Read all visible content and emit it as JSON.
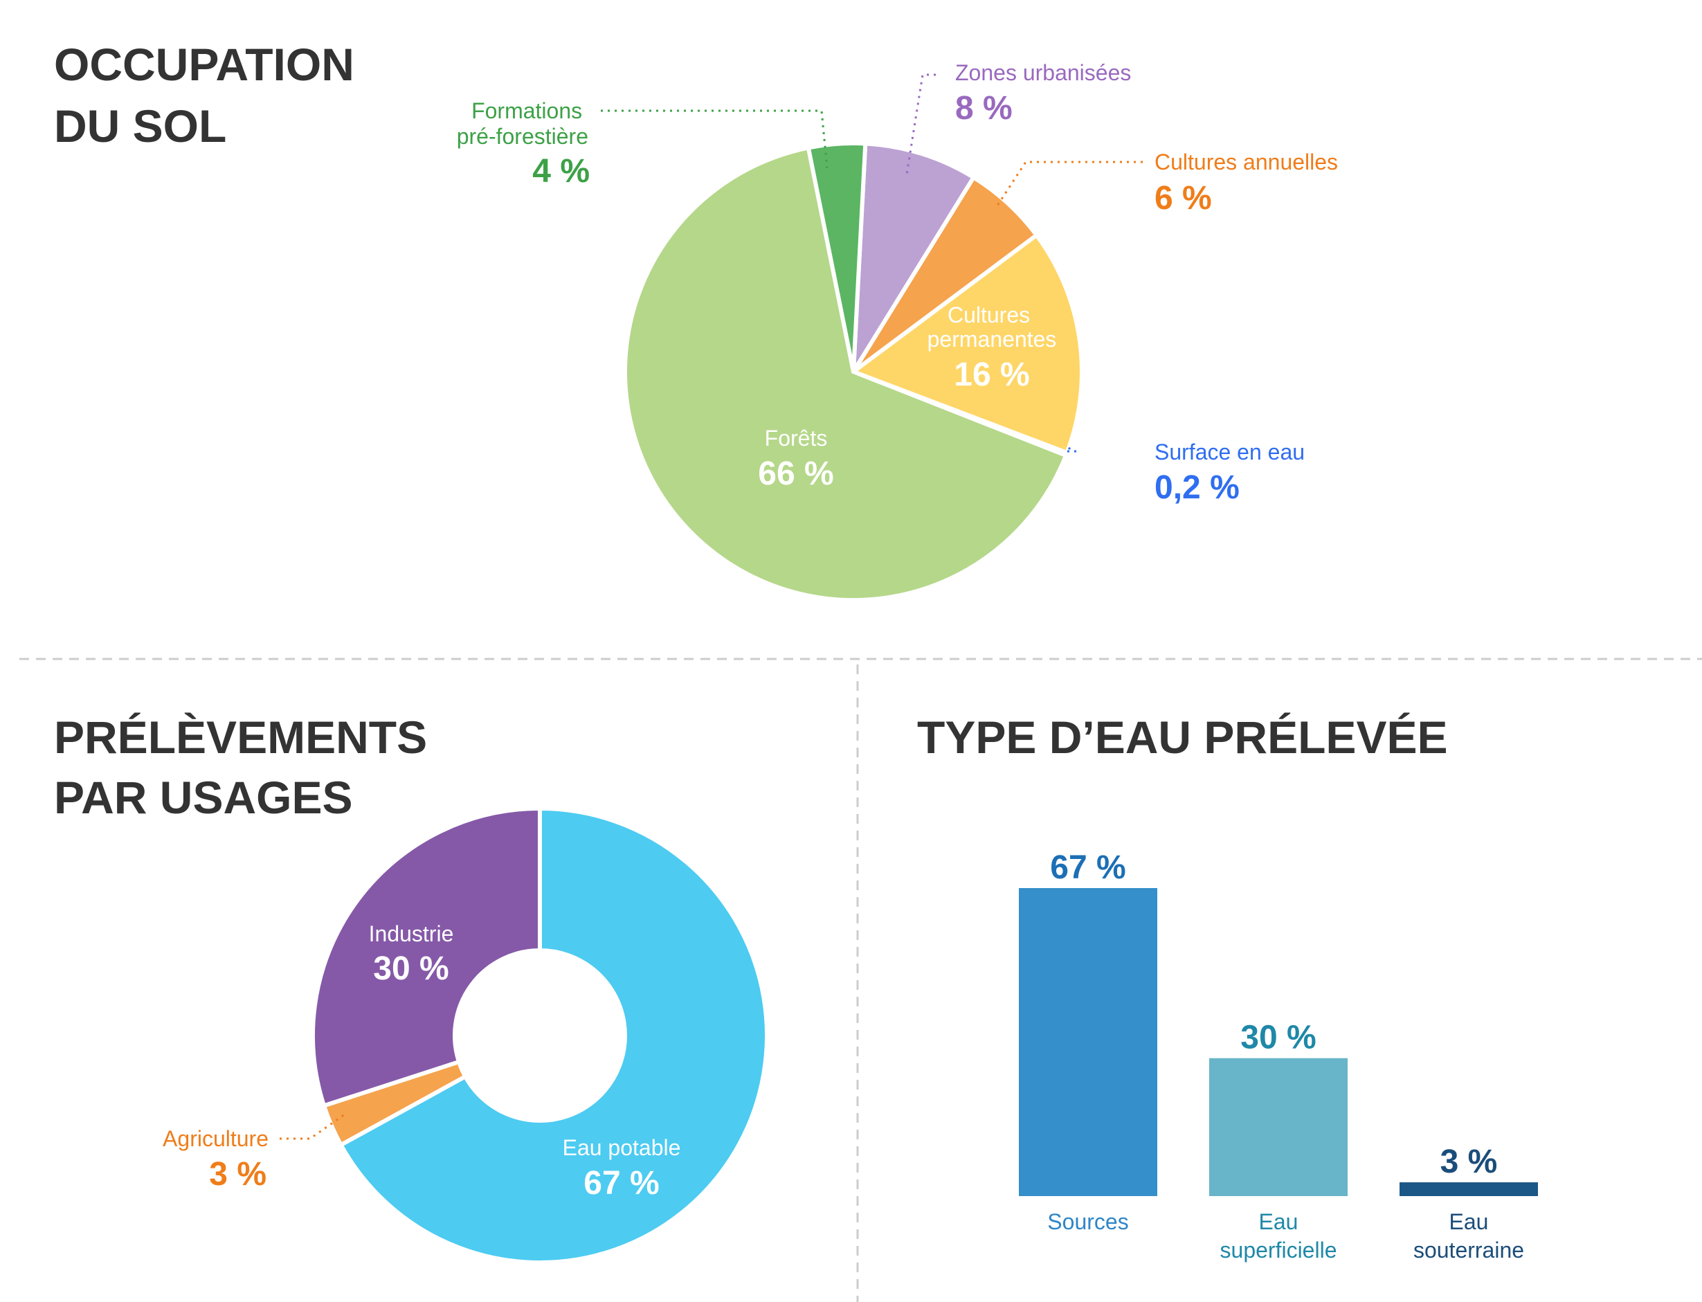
{
  "colors": {
    "background": "#ffffff",
    "title": "#333333",
    "separator": "#cccccc"
  },
  "chart_data": [
    {
      "type": "pie",
      "title_lines": [
        "OCCUPATION",
        "DU SOL"
      ],
      "slices": [
        {
          "key": "forets",
          "label_lines": [
            "Forêts"
          ],
          "value_label": "66 %",
          "value": 66,
          "color": "#b5d78a",
          "label_color": "#ffffff",
          "label_inside": true
        },
        {
          "key": "formations",
          "label_lines": [
            "Formations",
            "pré-forestière"
          ],
          "value_label": "4 %",
          "value": 4,
          "color": "#5bb563",
          "label_color": "#3da147",
          "label_inside": false
        },
        {
          "key": "zones",
          "label_lines": [
            "Zones urbanisées"
          ],
          "value_label": "8 %",
          "value": 8,
          "color": "#bca2d3",
          "label_color": "#9969bf",
          "label_inside": false
        },
        {
          "key": "cultures_annuelles",
          "label_lines": [
            "Cultures annuelles"
          ],
          "value_label": "6 %",
          "value": 6,
          "color": "#f5a34d",
          "label_color": "#ef7d1a",
          "label_inside": false
        },
        {
          "key": "cultures_permanentes",
          "label_lines": [
            "Cultures",
            "permanentes"
          ],
          "value_label": "16 %",
          "value": 16,
          "color": "#fed668",
          "label_color": "#ffffff",
          "label_inside": true
        },
        {
          "key": "surface_eau",
          "label_lines": [
            "Surface en eau"
          ],
          "value_label": "0,2 %",
          "value": 0.2,
          "color": "#4a8ef0",
          "label_color": "#2f6ef0",
          "label_inside": false
        }
      ]
    },
    {
      "type": "donut",
      "title_lines": [
        "PRÉLÈVEMENTS",
        "PAR USAGES"
      ],
      "slices": [
        {
          "key": "eau_potable",
          "label_lines": [
            "Eau potable"
          ],
          "value_label": "67 %",
          "value": 67,
          "color": "#4dcbf1",
          "label_color": "#ffffff",
          "label_inside": true
        },
        {
          "key": "agriculture",
          "label_lines": [
            "Agriculture"
          ],
          "value_label": "3 %",
          "value": 3,
          "color": "#f5a34d",
          "label_color": "#ef7d1a",
          "label_inside": false
        },
        {
          "key": "industrie",
          "label_lines": [
            "Industrie"
          ],
          "value_label": "30 %",
          "value": 30,
          "color": "#8559a8",
          "label_color": "#ffffff",
          "label_inside": true
        }
      ]
    },
    {
      "type": "bar",
      "title_lines": [
        "TYPE D’EAU PRÉLEVÉE"
      ],
      "categories": [
        {
          "key": "sources",
          "label_lines": [
            "Sources"
          ],
          "value": 67,
          "value_label": "67 %",
          "color": "#348fcb",
          "value_color": "#1c6fb5",
          "label_color": "#2f86c8"
        },
        {
          "key": "eau_superficielle",
          "label_lines": [
            "Eau",
            "superficielle"
          ],
          "value": 30,
          "value_label": "30 %",
          "color": "#68b4c8",
          "value_color": "#1f88a8",
          "label_color": "#1f88a8"
        },
        {
          "key": "eau_souterraine",
          "label_lines": [
            "Eau",
            "souterraine"
          ],
          "value": 3,
          "value_label": "3 %",
          "color": "#1b5888",
          "value_color": "#1b4d7a",
          "label_color": "#1b4d7a"
        }
      ],
      "ylim": [
        0,
        67
      ]
    }
  ]
}
